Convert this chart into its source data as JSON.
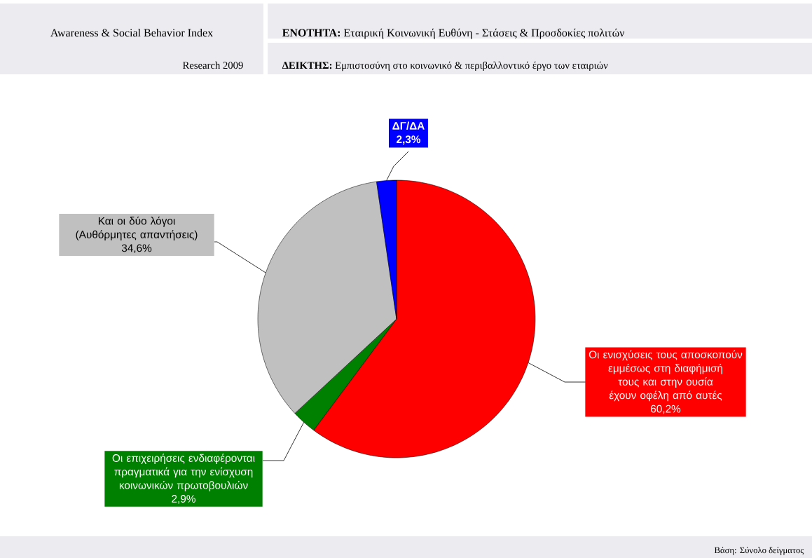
{
  "chart_data": {
    "type": "pie",
    "title": "Awareness & Social Behavior Index",
    "subtitle": "**ΕΝΟΤΗΤΑ:** Εταιρική Κοινωνική Ευθύνη - Στάσεις & Προσδοκίες πολιτών",
    "categories": [
      "Οι ενισχύσεις τους αποσκοπούν εμμέσως στη διαφήμισή τους και στην ουσία έχουν οφέλη από αυτές",
      "Οι επιχειρήσεις ενδιαφέρονται πραγματικά για την ενίσχυση κοινωνικών πρωτοβουλιών",
      "Και οι δύο λόγοι (Αυθόρμητες απαντήσεις)",
      "ΔΓ/ΔΑ"
    ],
    "values": [
      60.2,
      2.9,
      34.6,
      2.3
    ],
    "colors": [
      "#ff0000",
      "#008000",
      "#c0c0c0",
      "#0000ff"
    ],
    "value_labels": [
      "60,2%",
      "2,9%",
      "34,6%",
      "2,3%"
    ],
    "annotations": [
      "Research 2009",
      "**ΔΕΙΚΤΗΣ:** Εμπιστοσύνη στο κοινωνικό & περιβαλλοντικό έργο των εταιριών",
      "Βάση: Σύνολο δείγματος"
    ]
  }
}
